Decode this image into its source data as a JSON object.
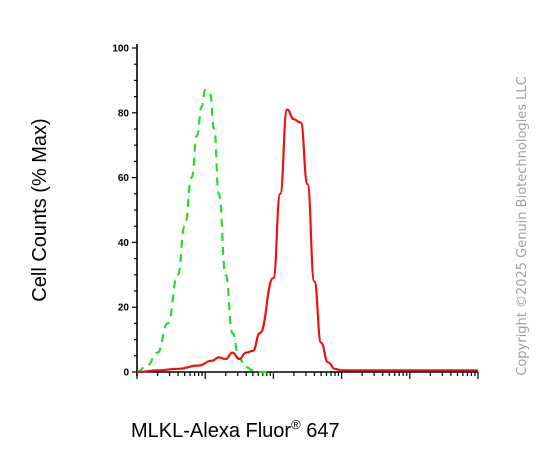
{
  "chart_data": {
    "type": "line",
    "xlabel": {
      "main": "MLKL-Alexa Fluor",
      "reg": "®",
      "suffix": " 647"
    },
    "ylabel": "Cell Counts (% Max)",
    "y_ticks": [
      "0",
      "20",
      "40",
      "60",
      "80",
      "100"
    ],
    "ylim": [
      0,
      100
    ],
    "x_scale": "log",
    "xlim": [
      0,
      5
    ],
    "series": [
      {
        "style": "dashed",
        "color": "#22dd22",
        "x": [
          0.0,
          0.15,
          0.3,
          0.45,
          0.6,
          0.7,
          0.8,
          0.88,
          0.95,
          1.0,
          1.07,
          1.13,
          1.2,
          1.3,
          1.4,
          1.5,
          1.6,
          1.7,
          1.8,
          2.0
        ],
        "y": [
          0,
          2,
          6,
          15,
          30,
          45,
          60,
          73,
          82,
          87,
          86,
          75,
          55,
          30,
          12,
          4,
          1.5,
          0.5,
          0,
          0
        ]
      },
      {
        "style": "solid",
        "color": "#ee1111",
        "x": [
          0.0,
          0.3,
          0.6,
          0.9,
          1.1,
          1.2,
          1.3,
          1.4,
          1.5,
          1.6,
          1.7,
          1.8,
          2.0,
          2.1,
          2.2,
          2.3,
          2.4,
          2.5,
          2.6,
          2.7,
          2.8,
          2.9,
          3.0,
          3.1,
          3.2,
          3.4,
          3.7,
          4.0,
          5.0
        ],
        "y": [
          0,
          0.5,
          1,
          2,
          3.5,
          4.5,
          4,
          6,
          4,
          6,
          6.5,
          12,
          29,
          55,
          81,
          78,
          77,
          58,
          28,
          9,
          3,
          1,
          0.5,
          0.5,
          0.5,
          0.5,
          0.5,
          0.5,
          0.5
        ]
      }
    ]
  },
  "watermark": "Copyright ©2025 Genuin Biotechnologies LLC"
}
